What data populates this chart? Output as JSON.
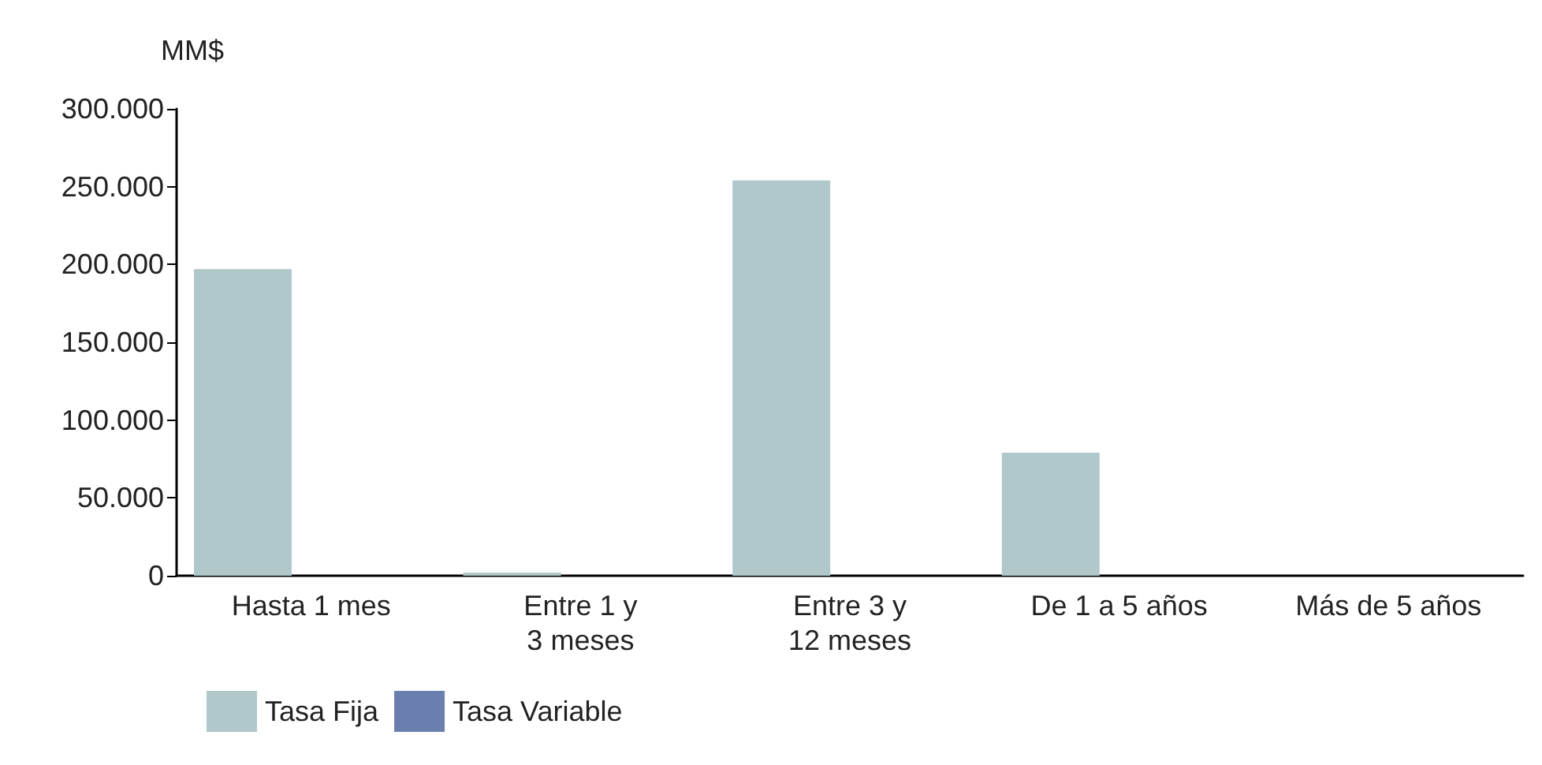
{
  "chart_data": {
    "type": "bar",
    "ylabel": "MM$",
    "categories": [
      "Hasta 1 mes",
      "Entre 1 y\n3 meses",
      "Entre 3 y\n12 meses",
      "De 1 a 5 años",
      "Más de 5 años"
    ],
    "series": [
      {
        "name": "Tasa Fija",
        "color": "#b0c8ca",
        "values": [
          197000,
          2000,
          254000,
          79000,
          0
        ]
      },
      {
        "name": "Tasa Variable",
        "color": "#6a7fae",
        "values": [
          0,
          0,
          0,
          0,
          0
        ]
      }
    ],
    "ylim": [
      0,
      300000
    ],
    "yticks": [
      {
        "value": 0,
        "label": "0"
      },
      {
        "value": 50000,
        "label": "50.000"
      },
      {
        "value": 100000,
        "label": "100.000"
      },
      {
        "value": 150000,
        "label": "150.000"
      },
      {
        "value": 200000,
        "label": "200.000"
      },
      {
        "value": 250000,
        "label": "250.000"
      },
      {
        "value": 300000,
        "label": "300.000"
      }
    ],
    "grid": false,
    "legend": "bottom left"
  }
}
